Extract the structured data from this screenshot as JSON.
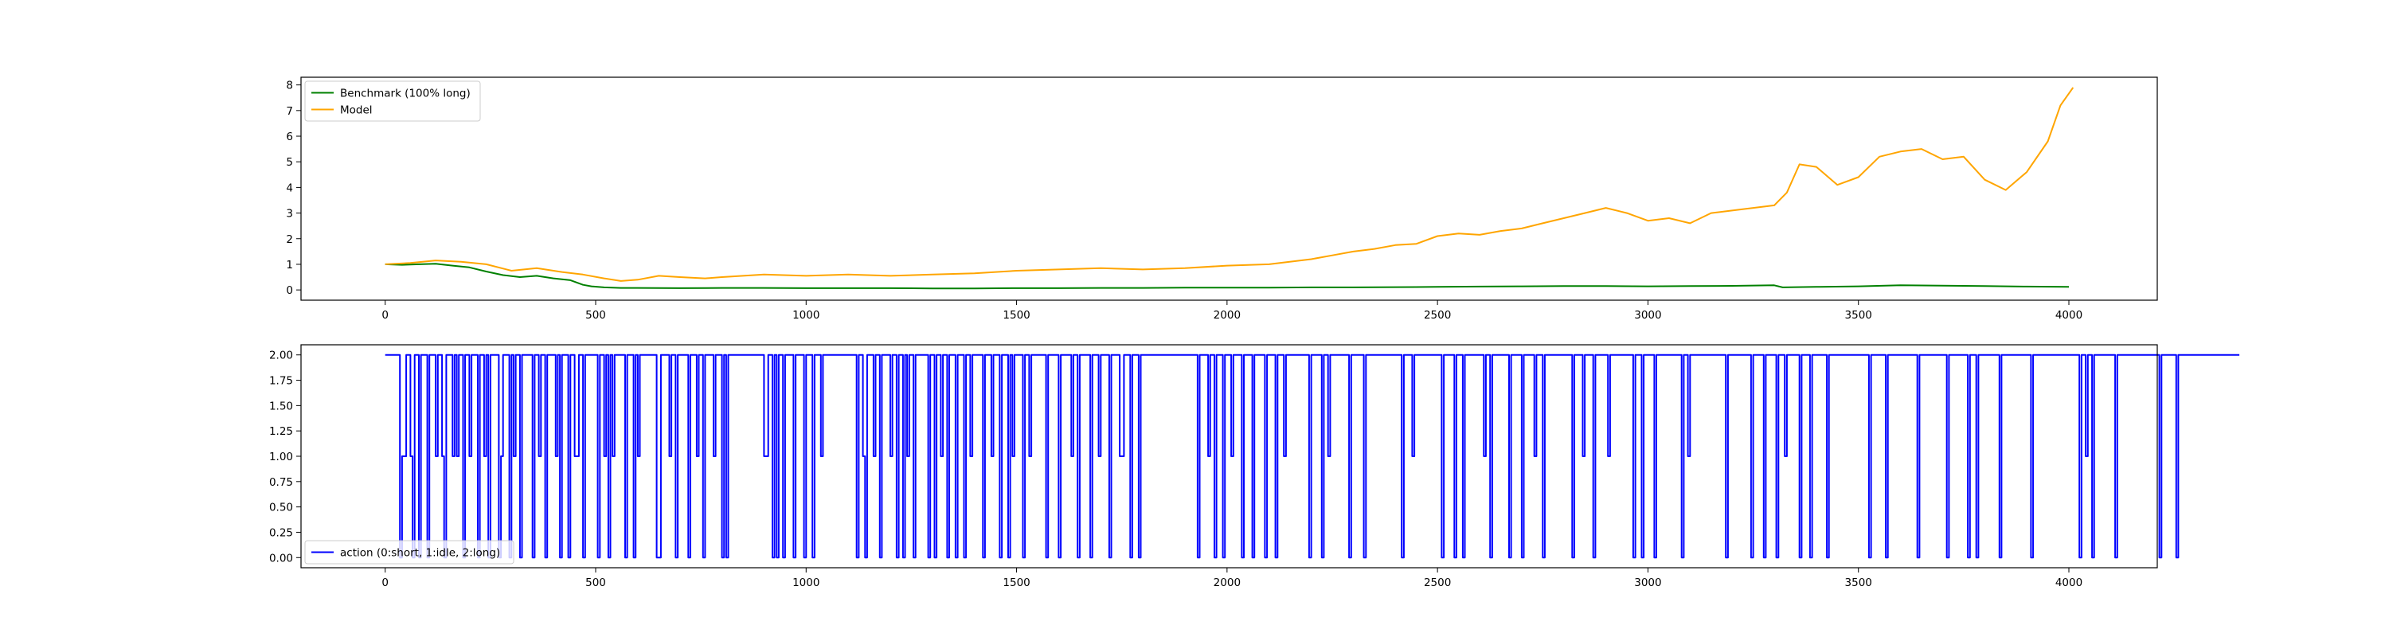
{
  "chart_data": [
    {
      "type": "line",
      "xlim": [
        -200,
        4210
      ],
      "ylim": [
        -0.4,
        8.3
      ],
      "xticks": [
        0,
        500,
        1000,
        1500,
        2000,
        2500,
        3000,
        3500,
        4000
      ],
      "yticks": [
        0,
        1,
        2,
        3,
        4,
        5,
        6,
        7,
        8
      ],
      "grid": false,
      "legend_position": "upper-left",
      "series": [
        {
          "name": "Benchmark (100% long)",
          "color": "#008000",
          "x": [
            0,
            40,
            80,
            120,
            160,
            200,
            240,
            280,
            320,
            360,
            400,
            440,
            470,
            490,
            520,
            560,
            600,
            700,
            800,
            900,
            1000,
            1100,
            1200,
            1300,
            1400,
            1500,
            1600,
            1700,
            1800,
            1900,
            2000,
            2100,
            2200,
            2300,
            2400,
            2500,
            2600,
            2700,
            2800,
            2900,
            3000,
            3100,
            3200,
            3300,
            3320,
            3400,
            3500,
            3600,
            3700,
            3800,
            3900,
            4000
          ],
          "y": [
            1.0,
            0.98,
            1.0,
            1.02,
            0.95,
            0.88,
            0.72,
            0.58,
            0.5,
            0.55,
            0.45,
            0.38,
            0.2,
            0.14,
            0.1,
            0.08,
            0.08,
            0.07,
            0.08,
            0.08,
            0.07,
            0.07,
            0.07,
            0.06,
            0.06,
            0.07,
            0.07,
            0.08,
            0.08,
            0.09,
            0.09,
            0.09,
            0.1,
            0.1,
            0.11,
            0.12,
            0.13,
            0.14,
            0.15,
            0.15,
            0.14,
            0.15,
            0.16,
            0.18,
            0.1,
            0.12,
            0.14,
            0.18,
            0.17,
            0.15,
            0.13,
            0.12
          ]
        },
        {
          "name": "Model",
          "color": "#ffa500",
          "x": [
            0,
            60,
            120,
            180,
            240,
            300,
            360,
            420,
            470,
            520,
            560,
            600,
            650,
            700,
            760,
            800,
            900,
            1000,
            1100,
            1200,
            1300,
            1400,
            1500,
            1600,
            1700,
            1800,
            1900,
            2000,
            2100,
            2200,
            2250,
            2300,
            2350,
            2400,
            2450,
            2500,
            2550,
            2600,
            2650,
            2700,
            2750,
            2800,
            2850,
            2900,
            2950,
            3000,
            3050,
            3100,
            3150,
            3200,
            3250,
            3300,
            3330,
            3360,
            3400,
            3450,
            3500,
            3550,
            3600,
            3650,
            3700,
            3750,
            3800,
            3850,
            3900,
            3950,
            3980,
            4010
          ],
          "y": [
            1.0,
            1.05,
            1.15,
            1.1,
            1.0,
            0.75,
            0.85,
            0.7,
            0.6,
            0.45,
            0.35,
            0.4,
            0.55,
            0.5,
            0.45,
            0.5,
            0.6,
            0.55,
            0.6,
            0.55,
            0.6,
            0.65,
            0.75,
            0.8,
            0.85,
            0.8,
            0.85,
            0.95,
            1.0,
            1.2,
            1.35,
            1.5,
            1.6,
            1.75,
            1.8,
            2.1,
            2.2,
            2.15,
            2.3,
            2.4,
            2.6,
            2.8,
            3.0,
            3.2,
            3.0,
            2.7,
            2.8,
            2.6,
            3.0,
            3.1,
            3.2,
            3.3,
            3.8,
            4.9,
            4.8,
            4.1,
            4.4,
            5.2,
            5.4,
            5.5,
            5.1,
            5.2,
            4.3,
            3.9,
            4.6,
            5.8,
            7.2,
            7.9
          ]
        }
      ]
    },
    {
      "type": "line",
      "xlim": [
        -200,
        4210
      ],
      "ylim": [
        -0.1,
        2.1
      ],
      "xticks": [
        0,
        500,
        1000,
        1500,
        2000,
        2500,
        3000,
        3500,
        4000
      ],
      "yticks": [
        0.0,
        0.25,
        0.5,
        0.75,
        1.0,
        1.25,
        1.5,
        1.75,
        2.0
      ],
      "ytick_labels": [
        "0.00",
        "0.25",
        "0.50",
        "0.75",
        "1.00",
        "1.25",
        "1.50",
        "1.75",
        "2.00"
      ],
      "grid": false,
      "legend_position": "lower-left",
      "series": [
        {
          "name": "action (0:short, 1:idle, 2:long)",
          "color": "#0000ff",
          "x_start": 0,
          "x_step": 5,
          "values": [
            2,
            2,
            2,
            2,
            2,
            2,
            2,
            0,
            1,
            1,
            2,
            2,
            1,
            0,
            2,
            2,
            0,
            2,
            2,
            2,
            0,
            2,
            2,
            2,
            1,
            2,
            2,
            1,
            0,
            2,
            2,
            2,
            1,
            2,
            1,
            2,
            2,
            0,
            2,
            2,
            1,
            2,
            2,
            2,
            0,
            2,
            2,
            1,
            2,
            0,
            2,
            2,
            2,
            2,
            0,
            1,
            2,
            2,
            2,
            0,
            2,
            1,
            2,
            2,
            0,
            2,
            2,
            2,
            2,
            2,
            0,
            2,
            2,
            1,
            2,
            2,
            0,
            2,
            2,
            2,
            2,
            1,
            2,
            0,
            2,
            2,
            2,
            0,
            2,
            2,
            1,
            1,
            2,
            2,
            0,
            2,
            2,
            2,
            2,
            2,
            2,
            0,
            2,
            2,
            1,
            2,
            0,
            2,
            1,
            2,
            2,
            2,
            2,
            2,
            0,
            2,
            2,
            2,
            0,
            2,
            1,
            2,
            2,
            2,
            2,
            2,
            2,
            2,
            2,
            0,
            0,
            2,
            2,
            2,
            2,
            1,
            2,
            2,
            0,
            2,
            2,
            2,
            2,
            2,
            0,
            2,
            2,
            2,
            1,
            2,
            2,
            0,
            2,
            2,
            2,
            2,
            1,
            2,
            2,
            2,
            0,
            2,
            0,
            2,
            2,
            2,
            2,
            2,
            2,
            2,
            2,
            2,
            2,
            2,
            2,
            2,
            2,
            2,
            2,
            2,
            1,
            1,
            2,
            2,
            0,
            2,
            0,
            2,
            2,
            0,
            2,
            2,
            2,
            2,
            0,
            2,
            2,
            2,
            2,
            0,
            2,
            2,
            2,
            0,
            2,
            2,
            2,
            1,
            2,
            2,
            2,
            2,
            2,
            2,
            2,
            2,
            2,
            2,
            2,
            2,
            2,
            2,
            2,
            2,
            0,
            2,
            2,
            1,
            0,
            2,
            2,
            2,
            1,
            2,
            2,
            0,
            2,
            2,
            2,
            2,
            1,
            2,
            2,
            0,
            2,
            2,
            0,
            2,
            1,
            2,
            2,
            0,
            2,
            2,
            2,
            2,
            2,
            2,
            0,
            2,
            2,
            0,
            2,
            2,
            1,
            2,
            2,
            0,
            2,
            2,
            2,
            0,
            2,
            2,
            2,
            0,
            2,
            2,
            1,
            2,
            2,
            2,
            2,
            2,
            0,
            2,
            2,
            2,
            1,
            2,
            2,
            2,
            0,
            2,
            2,
            2,
            0,
            2,
            1,
            2,
            2,
            2,
            2,
            0,
            2,
            2,
            1,
            2,
            2,
            2,
            2,
            2,
            2,
            2,
            0,
            2,
            2,
            2,
            2,
            2,
            0,
            2,
            2,
            2,
            2,
            2,
            1,
            2,
            2,
            0,
            2,
            2,
            2,
            2,
            2,
            0,
            2,
            2,
            2,
            1,
            2,
            2,
            2,
            2,
            0,
            2,
            2,
            2,
            2,
            1,
            1,
            2,
            2,
            2,
            0,
            2,
            2,
            2,
            0,
            2,
            2,
            2,
            2,
            2,
            2,
            2,
            2,
            2,
            2,
            2,
            2,
            2,
            2,
            2,
            2,
            2,
            2,
            2,
            2,
            2,
            2,
            2,
            2,
            2,
            2,
            2,
            0,
            2,
            2,
            2,
            2,
            1,
            2,
            2,
            0,
            2,
            2,
            2,
            0,
            2,
            2,
            2,
            1,
            2,
            2,
            2,
            2,
            0,
            2,
            2,
            2,
            2,
            0,
            2,
            2,
            2,
            2,
            2,
            0,
            2,
            2,
            2,
            2,
            0,
            2,
            2,
            2,
            1,
            2,
            2,
            2,
            2,
            2,
            2,
            2,
            2,
            2,
            2,
            2,
            0,
            2,
            2,
            2,
            2,
            2,
            0,
            2,
            2,
            1,
            2,
            2,
            2,
            2,
            2,
            2,
            2,
            2,
            2,
            0,
            2,
            2,
            2,
            2,
            2,
            2,
            0,
            2,
            2,
            2,
            2,
            2,
            2,
            2,
            2,
            2,
            2,
            2,
            2,
            2,
            2,
            2,
            2,
            2,
            0,
            2,
            2,
            2,
            2,
            1,
            2,
            2,
            2,
            2,
            2,
            2,
            2,
            2,
            2,
            2,
            2,
            2,
            2,
            0,
            2,
            2,
            2,
            2,
            2,
            0,
            2,
            2,
            2,
            0,
            2,
            2,
            2,
            2,
            2,
            2,
            2,
            2,
            2,
            1,
            2,
            2,
            0,
            2,
            2,
            2,
            2,
            2,
            2,
            2,
            2,
            0,
            2,
            2,
            2,
            2,
            2,
            0,
            2,
            2,
            2,
            2,
            2,
            1,
            2,
            2,
            2,
            0,
            2,
            2,
            2,
            2,
            2,
            2,
            2,
            2,
            2,
            2,
            2,
            2,
            2,
            0,
            2,
            2,
            2,
            2,
            1,
            2,
            2,
            2,
            2,
            0,
            2,
            2,
            2,
            2,
            2,
            2,
            1,
            2,
            2,
            2,
            2,
            2,
            2,
            2,
            2,
            2,
            2,
            2,
            0,
            2,
            2,
            2,
            0,
            2,
            2,
            2,
            2,
            2,
            0,
            2,
            2,
            2,
            2,
            2,
            2,
            2,
            2,
            2,
            2,
            2,
            2,
            0,
            2,
            2,
            1,
            2,
            2,
            2,
            2,
            2,
            2,
            2,
            2,
            2,
            2,
            2,
            2,
            2,
            2,
            2,
            2,
            2,
            0,
            2,
            2,
            2,
            2,
            2,
            2,
            2,
            2,
            2,
            2,
            2,
            0,
            2,
            2,
            2,
            2,
            2,
            0,
            2,
            2,
            2,
            2,
            2,
            0,
            2,
            2,
            2,
            1,
            2,
            2,
            2,
            2,
            2,
            2,
            0,
            2,
            2,
            2,
            2,
            0,
            2,
            2,
            2,
            2,
            2,
            2,
            2,
            0,
            2,
            2,
            2,
            2,
            2,
            2,
            2,
            2,
            2,
            2,
            2,
            2,
            2,
            2,
            2,
            2,
            2,
            2,
            2,
            0,
            2,
            2,
            2,
            2,
            2,
            2,
            2,
            0,
            2,
            2,
            2,
            2,
            2,
            2,
            2,
            2,
            2,
            2,
            2,
            2,
            2,
            2,
            0,
            2,
            2,
            2,
            2,
            2,
            2,
            2,
            2,
            2,
            2,
            2,
            2,
            2,
            0,
            2,
            2,
            2,
            2,
            2,
            2,
            2,
            2,
            2,
            0,
            2,
            2,
            2,
            0,
            2,
            2,
            2,
            2,
            2,
            2,
            2,
            2,
            2,
            2,
            0,
            2,
            2,
            2,
            2,
            2,
            2,
            2,
            2,
            2,
            2,
            2,
            2,
            2,
            2,
            0,
            2,
            2,
            2,
            2,
            2,
            2,
            2,
            2,
            2,
            2,
            2,
            2,
            2,
            2,
            2,
            2,
            2,
            2,
            2,
            2,
            2,
            2,
            0,
            2,
            2,
            1,
            2,
            2,
            0,
            2,
            2,
            2,
            2,
            2,
            2,
            2,
            2,
            2,
            2,
            0,
            2,
            2,
            2,
            2,
            2,
            2,
            2,
            2,
            2,
            2,
            2,
            2,
            2,
            2,
            2,
            2,
            2,
            2,
            2,
            2,
            0,
            2,
            2,
            2,
            2,
            2,
            2,
            2,
            0,
            2,
            2,
            2,
            2,
            2,
            2,
            2,
            2,
            2,
            2,
            2,
            2,
            2,
            2,
            2,
            2,
            2,
            2,
            2,
            2,
            2,
            2,
            2,
            2,
            2,
            2,
            2,
            2,
            2,
            2
          ]
        }
      ]
    }
  ]
}
